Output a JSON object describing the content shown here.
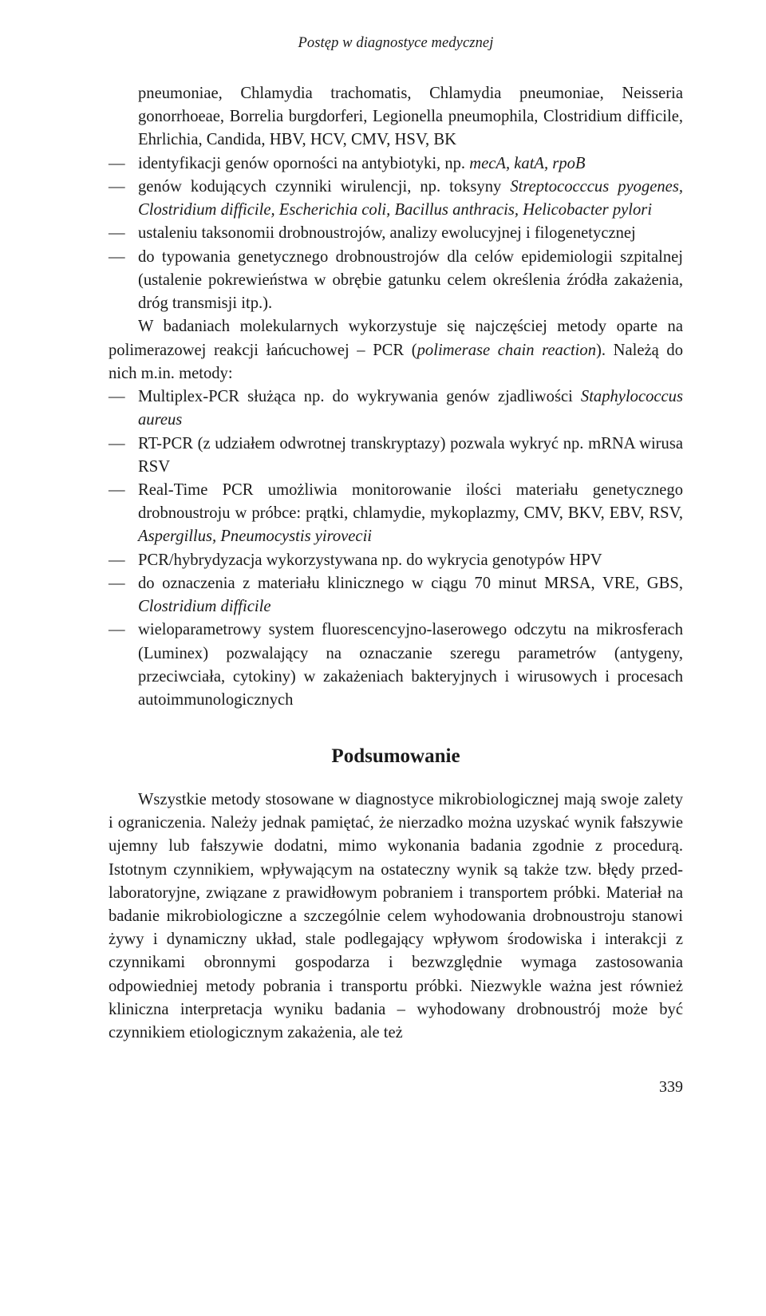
{
  "runningHead": "Postęp w diagnostyce medycznej",
  "intro_cont": "pneumoniae, Chlamydia trachomatis, Chlamydia pneumoniae, Neisseria gonorrhoeae, Borrelia burgdorferi, Legionella pneumophila, Clostridium difficile, Ehrlichia, Candida, HBV, HCV, CMV, HSV, BK",
  "list1": {
    "i0_a": "identyfikacji genów oporności na antybiotyki, np. ",
    "i0_b": "mecA, katA, rpoB",
    "i1_a": "genów kodujących czynniki wirulencji, np. toksyny ",
    "i1_b": "Streptococccus pyogenes, Clostridium difficile, Escherichia coli, Bacillus anthracis, Helicobacter pylori",
    "i2": "ustaleniu taksonomii drobnoustrojów, analizy ewolucyjnej i filogenetycznej",
    "i3": "do typowania genetycznego drobnoustrojów dla celów epidemiologii szpitalnej (ustalenie pokrewieństwa w obrębie gatunku celem określenia źródła zakażenia, dróg transmisji itp.)."
  },
  "para1_a": "W badaniach molekularnych wykorzystuje się najczęściej metody oparte na polimerazowej reakcji łańcuchowej – PCR (",
  "para1_b": "polimerase chain reaction",
  "para1_c": "). Należą do nich m.in. metody:",
  "list2": {
    "i0_a": "Multiplex-PCR służąca np. do wykrywania genów zjadliwości ",
    "i0_b": "Staphylococcus aureus",
    "i1": "RT-PCR (z udziałem odwrotnej transkryptazy) pozwala wykryć np. mRNA wirusa RSV",
    "i2_a": "Real-Time PCR umożliwia monitorowanie ilości materiału genetycznego drobnoustroju w próbce: prątki, chlamydie, mykoplazmy, CMV, BKV, EBV, RSV, ",
    "i2_b": "Aspergillus, Pneumocystis yirovecii",
    "i3": "PCR/hybrydyzacja wykorzystywana np. do wykrycia genotypów HPV",
    "i4_a": "do oznaczenia z materiału klinicznego w ciągu 70 minut MRSA, VRE, GBS, ",
    "i4_b": "Clostridium difficile",
    "i5": "wieloparametrowy system fluorescencyjno-laserowego odczytu na mikrosferach (Luminex) pozwalający na oznaczanie szeregu parametrów (antygeny, przeciwciała, cytokiny) w zakażeniach bakteryjnych i wirusowych i procesach autoimmunologicznych"
  },
  "section": "Podsumowanie",
  "para2": "Wszystkie metody stosowane w diagnostyce mikrobiologicznej mają swoje zalety i ograniczenia. Należy jednak pamiętać, że nierzadko można uzyskać wynik fałszywie ujemny lub fałszywie dodatni, mimo wykonania badania zgodnie z procedurą. Istotnym czynnikiem, wpływającym na ostateczny wynik są także tzw. błędy przed-laboratoryjne, związane z prawidłowym pobraniem i transportem próbki. Materiał na badanie mikrobiologiczne a szczególnie celem wyhodowania drobnoustroju stanowi żywy i dynamiczny układ, stale podlegający wpływom środowiska i interakcji z czynnikami obronnymi gospodarza i bezwzględnie wymaga zastosowania odpowiedniej metody pobrania i transportu próbki. Niezwykle ważna jest również kliniczna interpretacja wyniku badania – wyhodowany drobnoustrój może być czynnikiem etiologicznym zakażenia, ale też",
  "pageNumber": "339",
  "dash": "—"
}
